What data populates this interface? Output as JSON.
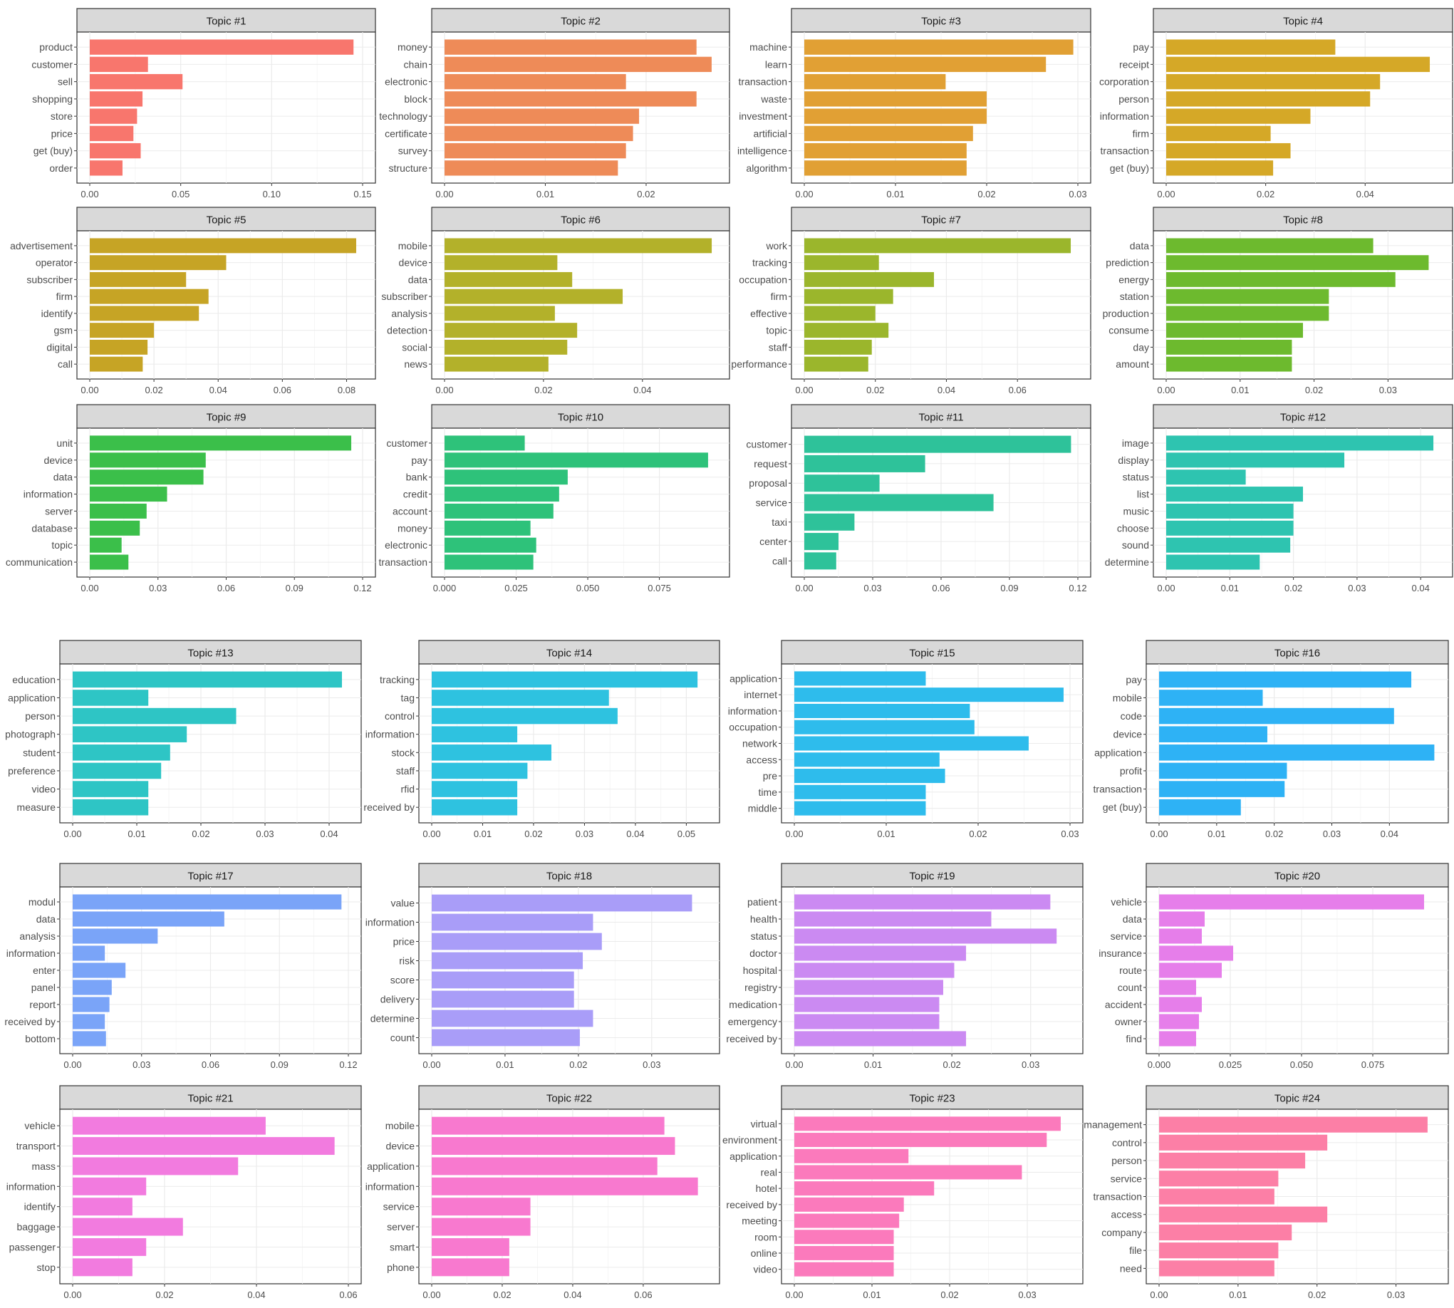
{
  "chart_data": [
    {
      "type": "bar",
      "orientation": "horizontal",
      "title": "Topic #1",
      "color": "#F8766D",
      "categories": [
        "product",
        "customer",
        "sell",
        "shopping",
        "store",
        "price",
        "get (buy)",
        "order"
      ],
      "values": [
        0.145,
        0.032,
        0.051,
        0.029,
        0.026,
        0.024,
        0.028,
        0.018
      ],
      "xlim": [
        0,
        0.15
      ],
      "ticks": [
        0,
        0.05,
        0.1,
        0.15
      ],
      "tick_labels": [
        "0.00",
        "0.05",
        "0.10",
        "0.15"
      ],
      "grid": true
    },
    {
      "type": "bar",
      "orientation": "horizontal",
      "title": "Topic #2",
      "color": "#EE8B58",
      "categories": [
        "money",
        "chain",
        "electronic",
        "block",
        "technology",
        "certificate",
        "survey",
        "structure"
      ],
      "values": [
        0.025,
        0.0265,
        0.018,
        0.025,
        0.0193,
        0.0187,
        0.018,
        0.0172
      ],
      "xlim": [
        0,
        0.027
      ],
      "ticks": [
        0,
        0.01,
        0.02
      ],
      "tick_labels": [
        "0.00",
        "0.01",
        "0.02"
      ],
      "grid": true
    },
    {
      "type": "bar",
      "orientation": "horizontal",
      "title": "Topic #3",
      "color": "#E1A034",
      "categories": [
        "machine",
        "learn",
        "transaction",
        "waste",
        "investment",
        "artificial",
        "intelligence",
        "algorithm"
      ],
      "values": [
        0.0295,
        0.0265,
        0.0155,
        0.02,
        0.02,
        0.0185,
        0.0178,
        0.0178
      ],
      "xlim": [
        0,
        0.03
      ],
      "ticks": [
        0,
        0.01,
        0.02,
        0.03
      ],
      "tick_labels": [
        "0.00",
        "0.01",
        "0.02",
        "0.03"
      ],
      "grid": true
    },
    {
      "type": "bar",
      "orientation": "horizontal",
      "title": "Topic #4",
      "color": "#D5A827",
      "categories": [
        "pay",
        "receipt",
        "corporation",
        "person",
        "information",
        "firm",
        "transaction",
        "get (buy)"
      ],
      "values": [
        0.034,
        0.053,
        0.043,
        0.041,
        0.029,
        0.021,
        0.025,
        0.0215
      ],
      "xlim": [
        0,
        0.055
      ],
      "ticks": [
        0,
        0.02,
        0.04
      ],
      "tick_labels": [
        "0.00",
        "0.02",
        "0.04"
      ],
      "grid": true
    },
    {
      "type": "bar",
      "orientation": "horizontal",
      "title": "Topic #5",
      "color": "#C6A425",
      "categories": [
        "advertisement",
        "operator",
        "subscriber",
        "firm",
        "identify",
        "gsm",
        "digital",
        "call"
      ],
      "values": [
        0.083,
        0.0425,
        0.03,
        0.037,
        0.034,
        0.02,
        0.018,
        0.0165
      ],
      "xlim": [
        0,
        0.085
      ],
      "ticks": [
        0,
        0.02,
        0.04,
        0.06,
        0.08
      ],
      "tick_labels": [
        "0.00",
        "0.02",
        "0.04",
        "0.06",
        "0.08"
      ],
      "grid": true
    },
    {
      "type": "bar",
      "orientation": "horizontal",
      "title": "Topic #6",
      "color": "#B3B12A",
      "categories": [
        "mobile",
        "device",
        "data",
        "subscriber",
        "analysis",
        "detection",
        "social",
        "news"
      ],
      "values": [
        0.054,
        0.0228,
        0.0258,
        0.036,
        0.0223,
        0.0268,
        0.0248,
        0.021
      ],
      "xlim": [
        0,
        0.055
      ],
      "ticks": [
        0,
        0.02,
        0.04
      ],
      "tick_labels": [
        "0.00",
        "0.02",
        "0.04"
      ],
      "grid": true
    },
    {
      "type": "bar",
      "orientation": "horizontal",
      "title": "Topic #7",
      "color": "#9BB62C",
      "categories": [
        "work",
        "tracking",
        "occupation",
        "firm",
        "effective",
        "topic",
        "staff",
        "performance"
      ],
      "values": [
        0.075,
        0.021,
        0.0365,
        0.025,
        0.02,
        0.0237,
        0.019,
        0.018
      ],
      "xlim": [
        0,
        0.077
      ],
      "ticks": [
        0,
        0.02,
        0.04,
        0.06
      ],
      "tick_labels": [
        "0.00",
        "0.02",
        "0.04",
        "0.06"
      ],
      "grid": true
    },
    {
      "type": "bar",
      "orientation": "horizontal",
      "title": "Topic #8",
      "color": "#6DBA2E",
      "categories": [
        "data",
        "prediction",
        "energy",
        "station",
        "production",
        "consume",
        "day",
        "amount"
      ],
      "values": [
        0.028,
        0.0355,
        0.031,
        0.022,
        0.022,
        0.0185,
        0.017,
        0.017
      ],
      "xlim": [
        0,
        0.037
      ],
      "ticks": [
        0,
        0.01,
        0.02,
        0.03
      ],
      "tick_labels": [
        "0.00",
        "0.01",
        "0.02",
        "0.03"
      ],
      "grid": true
    },
    {
      "type": "bar",
      "orientation": "horizontal",
      "title": "Topic #9",
      "color": "#3BBF4A",
      "categories": [
        "unit",
        "device",
        "data",
        "information",
        "server",
        "database",
        "topic",
        "communication"
      ],
      "values": [
        0.115,
        0.051,
        0.05,
        0.034,
        0.025,
        0.022,
        0.014,
        0.017
      ],
      "xlim": [
        0,
        0.12
      ],
      "ticks": [
        0,
        0.03,
        0.06,
        0.09,
        0.12
      ],
      "tick_labels": [
        "0.00",
        "0.03",
        "0.06",
        "0.09",
        "0.12"
      ],
      "grid": true
    },
    {
      "type": "bar",
      "orientation": "horizontal",
      "title": "Topic #10",
      "color": "#2EC27A",
      "categories": [
        "customer",
        "pay",
        "bank",
        "credit",
        "account",
        "money",
        "electronic",
        "transaction"
      ],
      "values": [
        0.028,
        0.092,
        0.043,
        0.04,
        0.038,
        0.03,
        0.032,
        0.031
      ],
      "xlim": [
        0,
        0.095
      ],
      "ticks": [
        0,
        0.025,
        0.05,
        0.075
      ],
      "tick_labels": [
        "0.000",
        "0.025",
        "0.050",
        "0.075"
      ],
      "grid": true
    },
    {
      "type": "bar",
      "orientation": "horizontal",
      "title": "Topic #11",
      "color": "#2EC29A",
      "categories": [
        "customer",
        "request",
        "proposal",
        "service",
        "taxi",
        "center",
        "call"
      ],
      "values": [
        0.117,
        0.053,
        0.033,
        0.083,
        0.022,
        0.015,
        0.014
      ],
      "xlim": [
        0,
        0.12
      ],
      "ticks": [
        0,
        0.03,
        0.06,
        0.09,
        0.12
      ],
      "tick_labels": [
        "0.00",
        "0.03",
        "0.06",
        "0.09",
        "0.12"
      ],
      "grid": true
    },
    {
      "type": "bar",
      "orientation": "horizontal",
      "title": "Topic #12",
      "color": "#2EC4B0",
      "categories": [
        "image",
        "display",
        "status",
        "list",
        "music",
        "choose",
        "sound",
        "determine"
      ],
      "values": [
        0.042,
        0.028,
        0.0125,
        0.0215,
        0.02,
        0.02,
        0.0195,
        0.0147
      ],
      "xlim": [
        0,
        0.043
      ],
      "ticks": [
        0,
        0.01,
        0.02,
        0.03,
        0.04
      ],
      "tick_labels": [
        "0.00",
        "0.01",
        "0.02",
        "0.03",
        "0.04"
      ],
      "grid": true
    },
    {
      "type": "bar",
      "orientation": "horizontal",
      "title": "Topic #13",
      "color": "#2EC5C5",
      "categories": [
        "education",
        "application",
        "person",
        "photograph",
        "student",
        "preference",
        "video",
        "measure"
      ],
      "values": [
        0.042,
        0.0118,
        0.0255,
        0.0178,
        0.0152,
        0.0138,
        0.0118,
        0.0118
      ],
      "xlim": [
        0,
        0.043
      ],
      "ticks": [
        0,
        0.01,
        0.02,
        0.03,
        0.04
      ],
      "tick_labels": [
        "0.00",
        "0.01",
        "0.02",
        "0.03",
        "0.04"
      ],
      "grid": true
    },
    {
      "type": "bar",
      "orientation": "horizontal",
      "title": "Topic #14",
      "color": "#2EC2E0",
      "categories": [
        "tracking",
        "tag",
        "control",
        "information",
        "stock",
        "staff",
        "rfid",
        "received by"
      ],
      "values": [
        0.0522,
        0.0348,
        0.0365,
        0.0168,
        0.0235,
        0.0188,
        0.0168,
        0.0168
      ],
      "xlim": [
        0,
        0.054
      ],
      "ticks": [
        0,
        0.01,
        0.02,
        0.03,
        0.04,
        0.05
      ],
      "tick_labels": [
        "0.00",
        "0.01",
        "0.02",
        "0.03",
        "0.04",
        "0.05"
      ],
      "grid": true
    },
    {
      "type": "bar",
      "orientation": "horizontal",
      "title": "Topic #15",
      "color": "#2EBCEC",
      "categories": [
        "application",
        "internet",
        "information",
        "occupation",
        "network",
        "access",
        "pre",
        "time",
        "middle"
      ],
      "values": [
        0.0143,
        0.0293,
        0.0191,
        0.0196,
        0.0255,
        0.0158,
        0.0164,
        0.0143,
        0.0143
      ],
      "xlim": [
        0,
        0.03
      ],
      "ticks": [
        0,
        0.01,
        0.02,
        0.03
      ],
      "tick_labels": [
        "0.00",
        "0.01",
        "0.02",
        "0.03"
      ],
      "grid": true
    },
    {
      "type": "bar",
      "orientation": "horizontal",
      "title": "Topic #16",
      "color": "#2EB2F5",
      "categories": [
        "pay",
        "mobile",
        "code",
        "device",
        "application",
        "profit",
        "transaction",
        "get (buy)"
      ],
      "values": [
        0.0438,
        0.018,
        0.0408,
        0.0188,
        0.0478,
        0.0222,
        0.0218,
        0.0142
      ],
      "xlim": [
        0,
        0.048
      ],
      "ticks": [
        0,
        0.01,
        0.02,
        0.03,
        0.04
      ],
      "tick_labels": [
        "0.00",
        "0.01",
        "0.02",
        "0.03",
        "0.04"
      ],
      "grid": true
    },
    {
      "type": "bar",
      "orientation": "horizontal",
      "title": "Topic #17",
      "color": "#7AA4F8",
      "categories": [
        "modul",
        "data",
        "analysis",
        "information",
        "enter",
        "panel",
        "report",
        "received by",
        "bottom"
      ],
      "values": [
        0.117,
        0.066,
        0.037,
        0.014,
        0.023,
        0.017,
        0.016,
        0.014,
        0.0145
      ],
      "xlim": [
        0,
        0.12
      ],
      "ticks": [
        0,
        0.03,
        0.06,
        0.09,
        0.12
      ],
      "tick_labels": [
        "0.00",
        "0.03",
        "0.06",
        "0.09",
        "0.12"
      ],
      "grid": true
    },
    {
      "type": "bar",
      "orientation": "horizontal",
      "title": "Topic #18",
      "color": "#A99DF8",
      "categories": [
        "value",
        "information",
        "price",
        "risk",
        "score",
        "delivery",
        "determine",
        "count"
      ],
      "values": [
        0.0355,
        0.022,
        0.0232,
        0.0206,
        0.0194,
        0.0194,
        0.022,
        0.0202
      ],
      "xlim": [
        0,
        0.0375
      ],
      "ticks": [
        0,
        0.01,
        0.02,
        0.03
      ],
      "tick_labels": [
        "0.00",
        "0.01",
        "0.02",
        "0.03"
      ],
      "grid": true
    },
    {
      "type": "bar",
      "orientation": "horizontal",
      "title": "Topic #19",
      "color": "#CB8AF2",
      "categories": [
        "patient",
        "health",
        "status",
        "doctor",
        "hospital",
        "registry",
        "medication",
        "emergency",
        "received by"
      ],
      "values": [
        0.0325,
        0.025,
        0.0333,
        0.0218,
        0.0203,
        0.0189,
        0.0184,
        0.0184,
        0.0218
      ],
      "xlim": [
        0,
        0.035
      ],
      "ticks": [
        0,
        0.01,
        0.02,
        0.03
      ],
      "tick_labels": [
        "0.00",
        "0.01",
        "0.02",
        "0.03"
      ],
      "grid": true
    },
    {
      "type": "bar",
      "orientation": "horizontal",
      "title": "Topic #20",
      "color": "#E67EEA",
      "categories": [
        "vehicle",
        "data",
        "service",
        "insurance",
        "route",
        "count",
        "accident",
        "owner",
        "find"
      ],
      "values": [
        0.093,
        0.016,
        0.015,
        0.026,
        0.022,
        0.013,
        0.015,
        0.014,
        0.013
      ],
      "xlim": [
        0,
        0.097
      ],
      "ticks": [
        0,
        0.025,
        0.05,
        0.075
      ],
      "tick_labels": [
        "0.000",
        "0.025",
        "0.050",
        "0.075"
      ],
      "grid": true
    },
    {
      "type": "bar",
      "orientation": "horizontal",
      "title": "Topic #21",
      "color": "#F27BDF",
      "categories": [
        "vehicle",
        "transport",
        "mass",
        "information",
        "identify",
        "baggage",
        "passenger",
        "stop"
      ],
      "values": [
        0.042,
        0.057,
        0.036,
        0.016,
        0.013,
        0.024,
        0.016,
        0.013
      ],
      "xlim": [
        0,
        0.06
      ],
      "ticks": [
        0,
        0.02,
        0.04,
        0.06
      ],
      "tick_labels": [
        "0.00",
        "0.02",
        "0.04",
        "0.06"
      ],
      "grid": true
    },
    {
      "type": "bar",
      "orientation": "horizontal",
      "title": "Topic #22",
      "color": "#F879CF",
      "categories": [
        "mobile",
        "device",
        "application",
        "information",
        "service",
        "server",
        "smart",
        "phone"
      ],
      "values": [
        0.066,
        0.069,
        0.064,
        0.0755,
        0.028,
        0.028,
        0.022,
        0.022
      ],
      "xlim": [
        0,
        0.078
      ],
      "ticks": [
        0,
        0.02,
        0.04,
        0.06
      ],
      "tick_labels": [
        "0.00",
        "0.02",
        "0.04",
        "0.06"
      ],
      "grid": true
    },
    {
      "type": "bar",
      "orientation": "horizontal",
      "title": "Topic #23",
      "color": "#FB7ABC",
      "categories": [
        "virtual",
        "environment",
        "application",
        "real",
        "hotel",
        "received by",
        "meeting",
        "room",
        "online",
        "video"
      ],
      "values": [
        0.0343,
        0.0325,
        0.0147,
        0.0293,
        0.018,
        0.0141,
        0.0135,
        0.0128,
        0.0128,
        0.0128
      ],
      "xlim": [
        0,
        0.0355
      ],
      "ticks": [
        0,
        0.01,
        0.02,
        0.03
      ],
      "tick_labels": [
        "0.00",
        "0.01",
        "0.02",
        "0.03"
      ],
      "grid": true
    },
    {
      "type": "bar",
      "orientation": "horizontal",
      "title": "Topic #24",
      "color": "#FC7FA6",
      "categories": [
        "management",
        "control",
        "person",
        "service",
        "transaction",
        "access",
        "company",
        "file",
        "need"
      ],
      "values": [
        0.034,
        0.0213,
        0.0185,
        0.0151,
        0.0146,
        0.0213,
        0.0168,
        0.0151,
        0.0146
      ],
      "xlim": [
        0,
        0.035
      ],
      "ticks": [
        0,
        0.01,
        0.02,
        0.03
      ],
      "tick_labels": [
        "0.00",
        "0.01",
        "0.02",
        "0.03"
      ],
      "grid": true
    }
  ]
}
